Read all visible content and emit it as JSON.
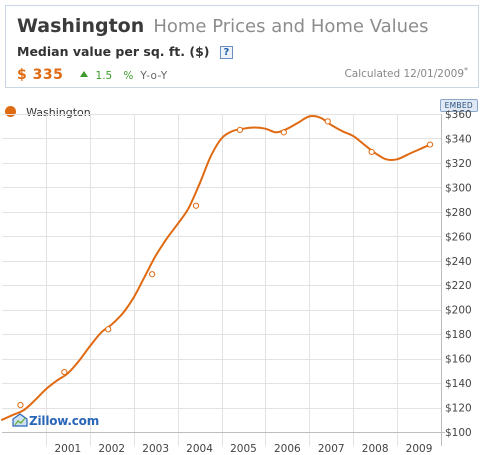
{
  "header": {
    "place": "Washington",
    "title_rest": "Home Prices and Home Values",
    "metric_label": "Median value per sq. ft. ($)",
    "help_glyph": "?",
    "value": "$ 335",
    "change": "1.5",
    "change_unit": "%",
    "change_label": "Y-o-Y",
    "calculated": "Calculated 12/01/2009",
    "calculated_mark": "*",
    "change_color": "#3c9a2a",
    "value_color": "#e06a12"
  },
  "legend": {
    "label": "Washington",
    "embed_label": "EMBED"
  },
  "logo": {
    "text": "Zillow.com"
  },
  "icons": {
    "help": "help-icon",
    "trend": "up-arrow-icon",
    "legend": "circle-marker-icon",
    "logo": "zillow-logo-icon"
  },
  "chart_data": {
    "type": "line",
    "x_unit": "year",
    "xlim": [
      2000.0,
      2010.0
    ],
    "ylim": [
      100,
      360
    ],
    "yticks": [
      100,
      120,
      140,
      160,
      180,
      200,
      220,
      240,
      260,
      280,
      300,
      320,
      340,
      360
    ],
    "ytick_labels": [
      "$100",
      "$120",
      "$140",
      "$160",
      "$180",
      "$200",
      "$220",
      "$240",
      "$260",
      "$280",
      "$300",
      "$320",
      "$340",
      "$360"
    ],
    "xtick_labels": [
      "2001",
      "2002",
      "2003",
      "2004",
      "2005",
      "2006",
      "2007",
      "2008",
      "2009"
    ],
    "grid": true,
    "legend_position": "top-left",
    "series": [
      {
        "name": "Washington",
        "color": "#e06a12",
        "points": [
          [
            2000.0,
            110
          ],
          [
            2000.25,
            114
          ],
          [
            2000.5,
            118
          ],
          [
            2000.75,
            126
          ],
          [
            2001.0,
            135
          ],
          [
            2001.25,
            142
          ],
          [
            2001.5,
            148
          ],
          [
            2001.75,
            158
          ],
          [
            2002.0,
            170
          ],
          [
            2002.25,
            181
          ],
          [
            2002.5,
            188
          ],
          [
            2002.75,
            197
          ],
          [
            2003.0,
            210
          ],
          [
            2003.25,
            227
          ],
          [
            2003.5,
            244
          ],
          [
            2003.75,
            258
          ],
          [
            2004.0,
            270
          ],
          [
            2004.25,
            283
          ],
          [
            2004.5,
            303
          ],
          [
            2004.75,
            325
          ],
          [
            2005.0,
            340
          ],
          [
            2005.25,
            346
          ],
          [
            2005.5,
            348
          ],
          [
            2005.75,
            349
          ],
          [
            2006.0,
            348
          ],
          [
            2006.25,
            345
          ],
          [
            2006.5,
            348
          ],
          [
            2006.75,
            353
          ],
          [
            2007.0,
            358
          ],
          [
            2007.25,
            357
          ],
          [
            2007.5,
            351
          ],
          [
            2007.75,
            346
          ],
          [
            2008.0,
            342
          ],
          [
            2008.25,
            335
          ],
          [
            2008.5,
            328
          ],
          [
            2008.75,
            323
          ],
          [
            2009.0,
            323
          ],
          [
            2009.25,
            327
          ],
          [
            2009.5,
            331
          ],
          [
            2009.75,
            335
          ]
        ],
        "markers": [
          [
            2000.42,
            122
          ],
          [
            2001.42,
            149
          ],
          [
            2002.42,
            184
          ],
          [
            2003.42,
            229
          ],
          [
            2004.42,
            285
          ],
          [
            2005.42,
            347
          ],
          [
            2006.42,
            345
          ],
          [
            2007.42,
            354
          ],
          [
            2008.42,
            329
          ],
          [
            2009.75,
            335
          ]
        ]
      }
    ]
  }
}
